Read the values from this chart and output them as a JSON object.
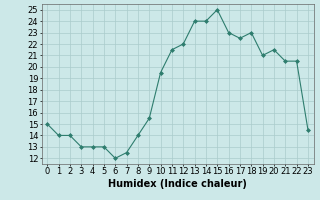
{
  "x": [
    0,
    1,
    2,
    3,
    4,
    5,
    6,
    7,
    8,
    9,
    10,
    11,
    12,
    13,
    14,
    15,
    16,
    17,
    18,
    19,
    20,
    21,
    22,
    23
  ],
  "y": [
    15,
    14,
    14,
    13,
    13,
    13,
    12,
    12.5,
    14,
    15.5,
    19.5,
    21.5,
    22,
    24,
    24,
    25,
    23,
    22.5,
    23,
    21,
    21.5,
    20.5,
    20.5,
    14.5
  ],
  "line_color": "#2e7d6e",
  "marker": "D",
  "marker_size": 2,
  "bg_color": "#cce8e8",
  "grid_color": "#aacccc",
  "xlabel": "Humidex (Indice chaleur)",
  "xlim": [
    -0.5,
    23.5
  ],
  "ylim": [
    11.5,
    25.5
  ],
  "xticks": [
    0,
    1,
    2,
    3,
    4,
    5,
    6,
    7,
    8,
    9,
    10,
    11,
    12,
    13,
    14,
    15,
    16,
    17,
    18,
    19,
    20,
    21,
    22,
    23
  ],
  "yticks": [
    12,
    13,
    14,
    15,
    16,
    17,
    18,
    19,
    20,
    21,
    22,
    23,
    24,
    25
  ],
  "tick_label_size": 6,
  "xlabel_size": 7
}
